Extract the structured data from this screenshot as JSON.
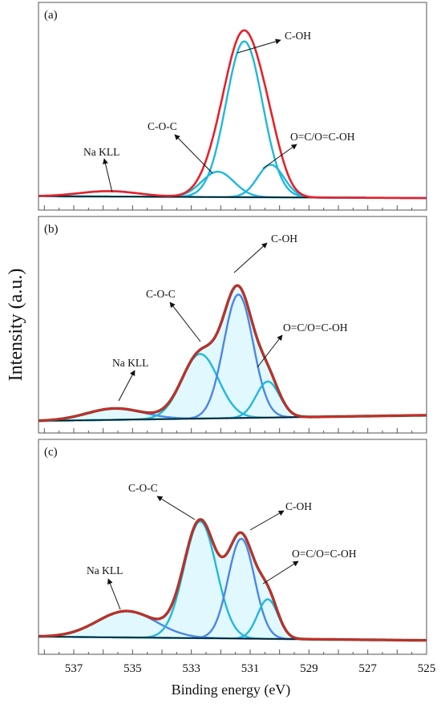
{
  "chart_data": {
    "type": "line",
    "xlabel": "Binding energy (eV)",
    "ylabel": "Intensity (a.u.)",
    "xlim": [
      538.2,
      525
    ],
    "x_reversed": true,
    "xticks": [
      "537",
      "535",
      "533",
      "531",
      "529",
      "527",
      "525"
    ],
    "xtick_values": [
      537,
      535,
      533,
      531,
      529,
      527,
      525
    ],
    "grid": false,
    "legend": "none",
    "colors": {
      "envelope": "#e8202a",
      "component": "#1fb8e0",
      "component_dark": "#4a86e8",
      "background": "#111111",
      "raw": "#6b4a2a",
      "fill": "#bfefff"
    },
    "panels": [
      {
        "label": "(a)",
        "baseline": [
          [
            538.2,
            0.01
          ],
          [
            525,
            0.0
          ]
        ],
        "peaks": [
          {
            "name": "Na KLL",
            "center": 535.8,
            "height": 0.03,
            "sigma": 1.0
          },
          {
            "name": "C-O-C",
            "center": 532.1,
            "height": 0.14,
            "sigma": 0.55
          },
          {
            "name": "C-OH",
            "center": 531.2,
            "height": 0.86,
            "sigma": 0.62
          },
          {
            "name": "O=C/O=C-OH",
            "center": 530.3,
            "height": 0.18,
            "sigma": 0.45
          }
        ],
        "annotations": [
          "Na KLL",
          "C-O-C",
          "C-OH",
          "O=C/O=C-OH"
        ]
      },
      {
        "label": "(b)",
        "baseline": [
          [
            538.2,
            0.0
          ],
          [
            525,
            0.03
          ]
        ],
        "peaks": [
          {
            "name": "Na KLL",
            "center": 535.6,
            "height": 0.06,
            "sigma": 0.95
          },
          {
            "name": "C-O-C",
            "center": 532.7,
            "height": 0.34,
            "sigma": 0.62
          },
          {
            "name": "C-OH",
            "center": 531.4,
            "height": 0.65,
            "sigma": 0.5
          },
          {
            "name": "O=C/O=C-OH",
            "center": 530.4,
            "height": 0.19,
            "sigma": 0.4
          }
        ],
        "annotations": [
          "Na KLL",
          "C-O-C",
          "C-OH",
          "O=C/O=C-OH"
        ]
      },
      {
        "label": "(c)",
        "baseline": [
          [
            538.2,
            0.03
          ],
          [
            525,
            0.01
          ]
        ],
        "peaks": [
          {
            "name": "Na KLL",
            "center": 535.2,
            "height": 0.14,
            "sigma": 1.0
          },
          {
            "name": "C-O-C",
            "center": 532.7,
            "height": 0.62,
            "sigma": 0.55
          },
          {
            "name": "C-OH",
            "center": 531.3,
            "height": 0.53,
            "sigma": 0.45
          },
          {
            "name": "O=C/O=C-OH",
            "center": 530.4,
            "height": 0.21,
            "sigma": 0.35
          }
        ],
        "annotations": [
          "Na KLL",
          "C-O-C",
          "C-OH",
          "O=C/O=C-OH"
        ]
      }
    ]
  }
}
